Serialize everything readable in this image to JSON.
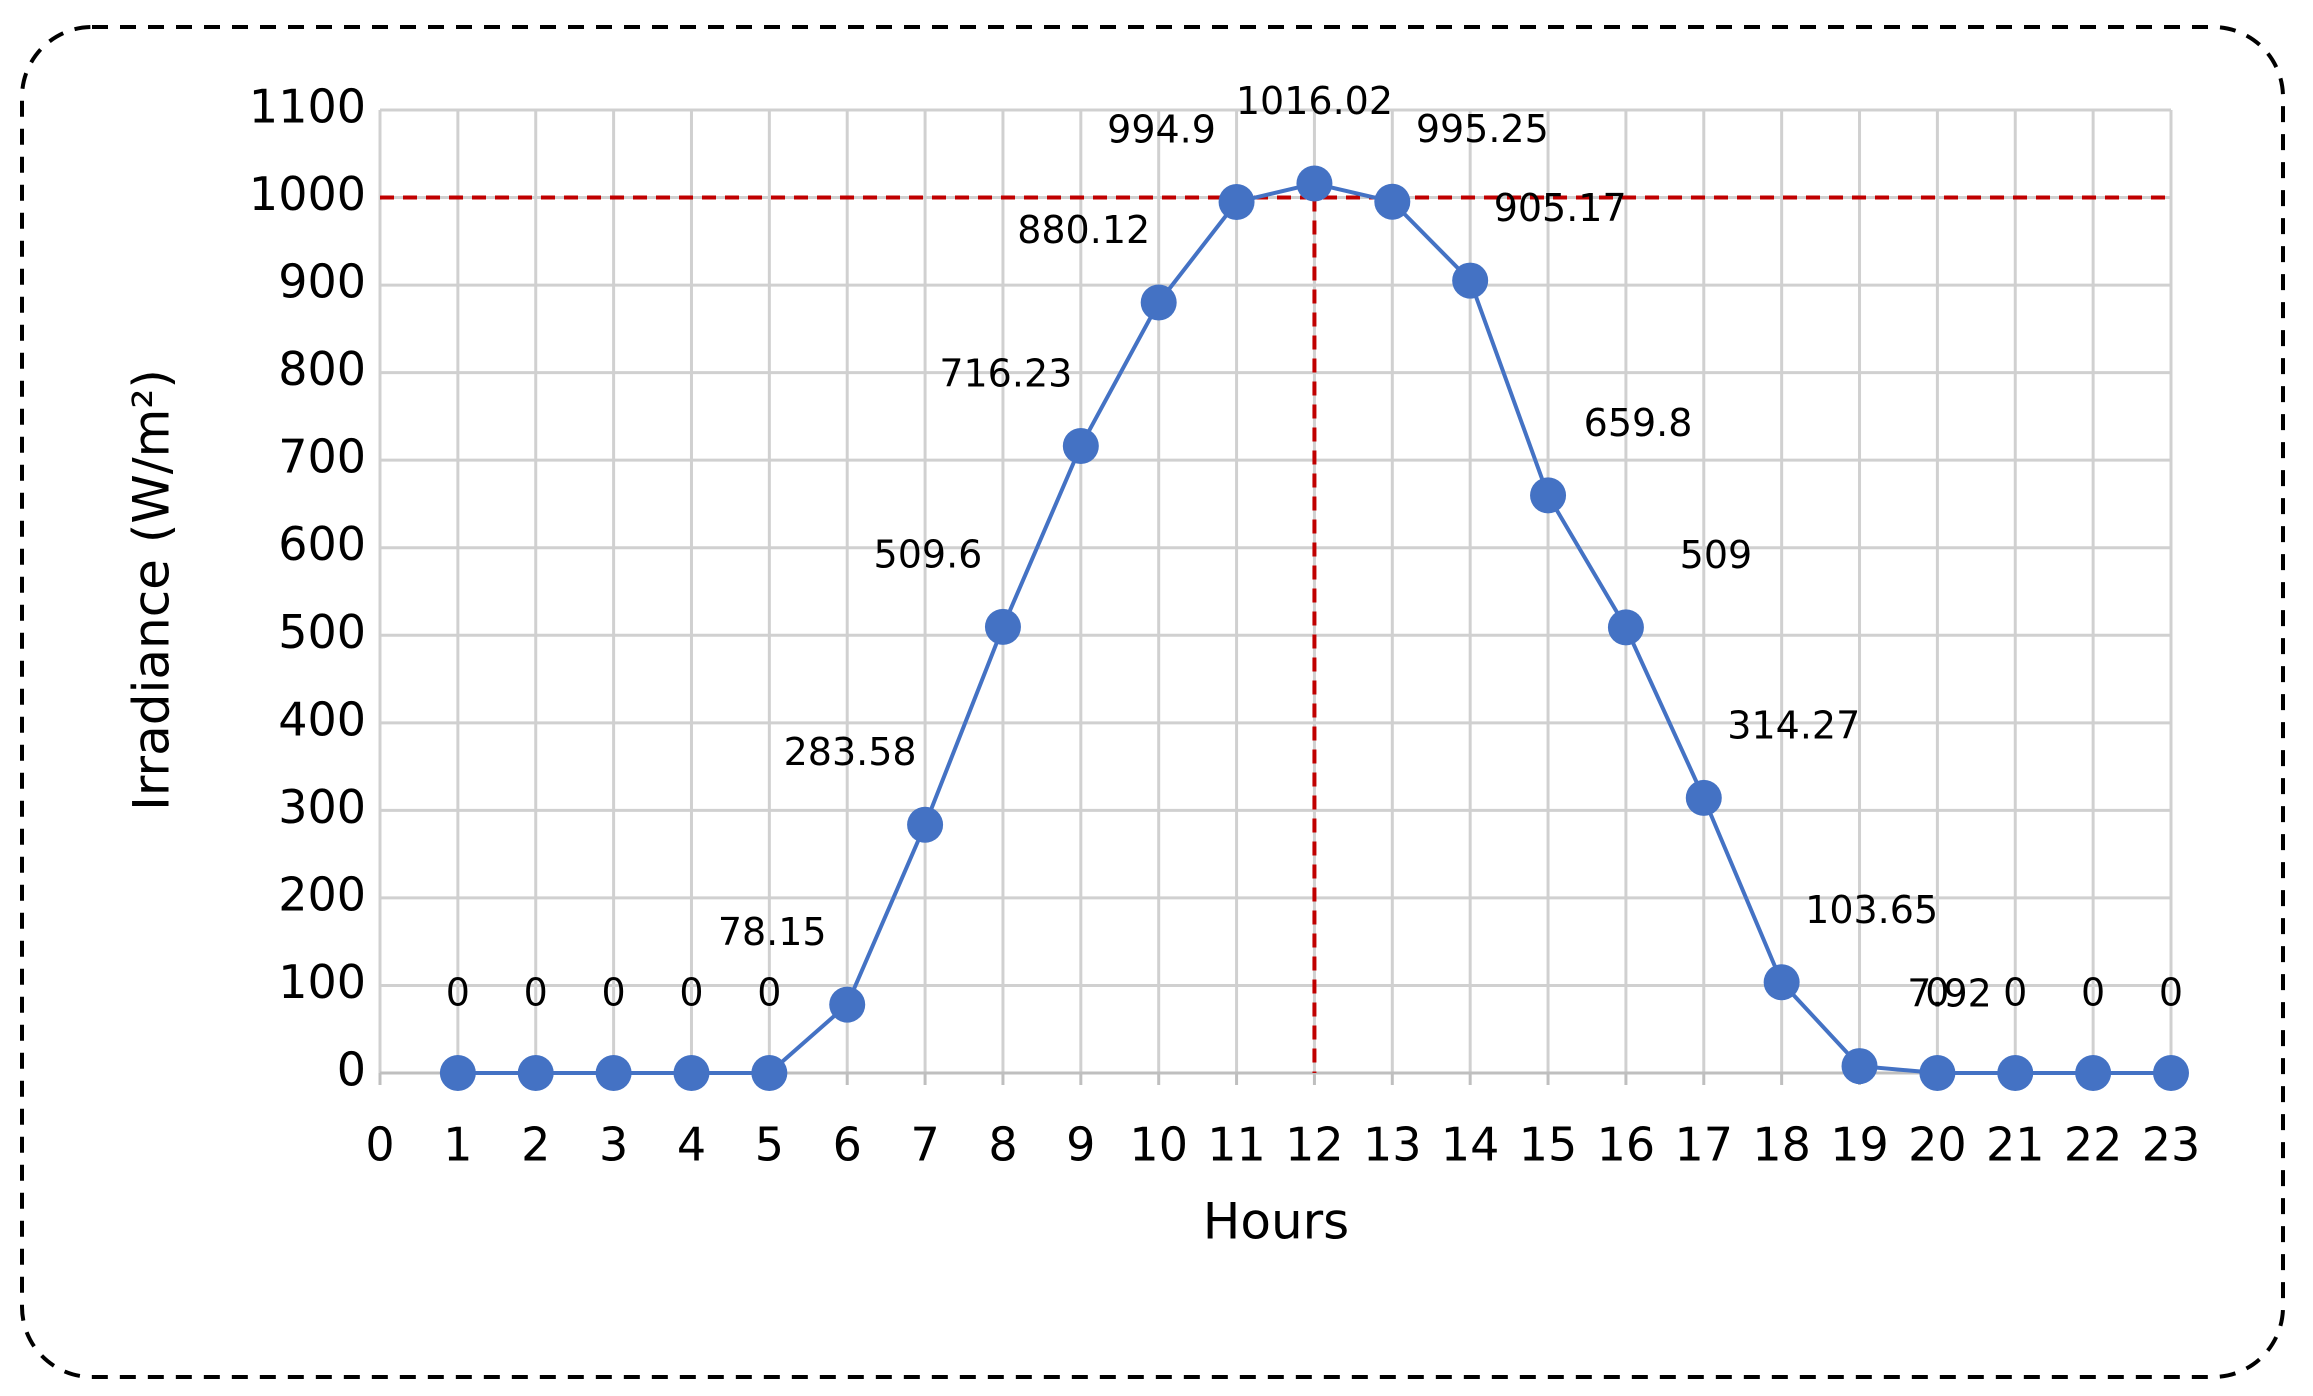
{
  "chart_data": {
    "type": "line",
    "x_label": "Hours",
    "y_label": "Irradiance (W/m²)",
    "x": [
      1,
      2,
      3,
      4,
      5,
      6,
      7,
      8,
      9,
      10,
      11,
      12,
      13,
      14,
      15,
      16,
      17,
      18,
      19,
      20,
      21,
      22,
      23
    ],
    "series": [
      {
        "color": "#4472c4",
        "values": [
          0,
          0,
          0,
          0,
          0,
          78.15,
          283.58,
          509.6,
          716.23,
          880.12,
          994.9,
          1016.02,
          995.25,
          905.17,
          659.8,
          509,
          314.27,
          103.65,
          7.92,
          0,
          0,
          0,
          0
        ]
      }
    ],
    "xlim": [
      0,
      23
    ],
    "xticks": [
      0,
      1,
      2,
      3,
      4,
      5,
      6,
      7,
      8,
      9,
      10,
      11,
      12,
      13,
      14,
      15,
      16,
      17,
      18,
      19,
      20,
      21,
      22,
      23
    ],
    "ylim": [
      0,
      1100
    ],
    "yticks": [
      0,
      100,
      200,
      300,
      400,
      500,
      600,
      700,
      800,
      900,
      1000,
      1100
    ],
    "grid": true,
    "reference_lines": {
      "y": 1000,
      "x": 12,
      "color": "#c00000"
    }
  }
}
